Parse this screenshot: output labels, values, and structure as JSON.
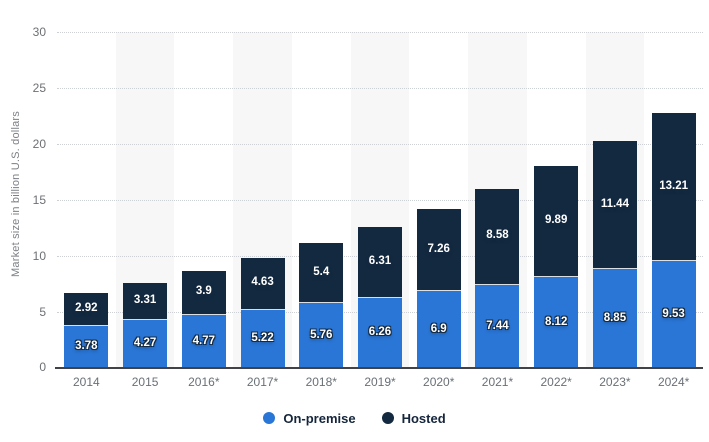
{
  "chart_data": {
    "type": "bar",
    "stacked": true,
    "title": "",
    "xlabel": "",
    "ylabel": "Market size in billion U.S. dollars",
    "ylim": [
      0,
      30
    ],
    "yticks": [
      0,
      5,
      10,
      15,
      20,
      25,
      30
    ],
    "grid": true,
    "grid_style": "dotted",
    "legend_position": "bottom",
    "categories": [
      "2014",
      "2015",
      "2016*",
      "2017*",
      "2018*",
      "2019*",
      "2020*",
      "2021*",
      "2022*",
      "2023*",
      "2024*"
    ],
    "series": [
      {
        "name": "On-premise",
        "color": "#2a76d6",
        "values": [
          3.78,
          4.27,
          4.77,
          5.22,
          5.76,
          6.26,
          6.9,
          7.44,
          8.12,
          8.85,
          9.53
        ]
      },
      {
        "name": "Hosted",
        "color": "#13293f",
        "values": [
          2.92,
          3.31,
          3.9,
          4.63,
          5.4,
          6.31,
          7.26,
          8.58,
          9.89,
          11.44,
          13.21
        ]
      }
    ],
    "colors": {
      "on_premise": "#2a76d6",
      "hosted": "#13293f",
      "column_band": "#f7f7f8",
      "gridline": "#cdd0d4",
      "axis_line": "#3f4248",
      "tick_text": "#6d7074",
      "legend_text": "#15263c",
      "bar_label_text": "#ffffff"
    }
  }
}
